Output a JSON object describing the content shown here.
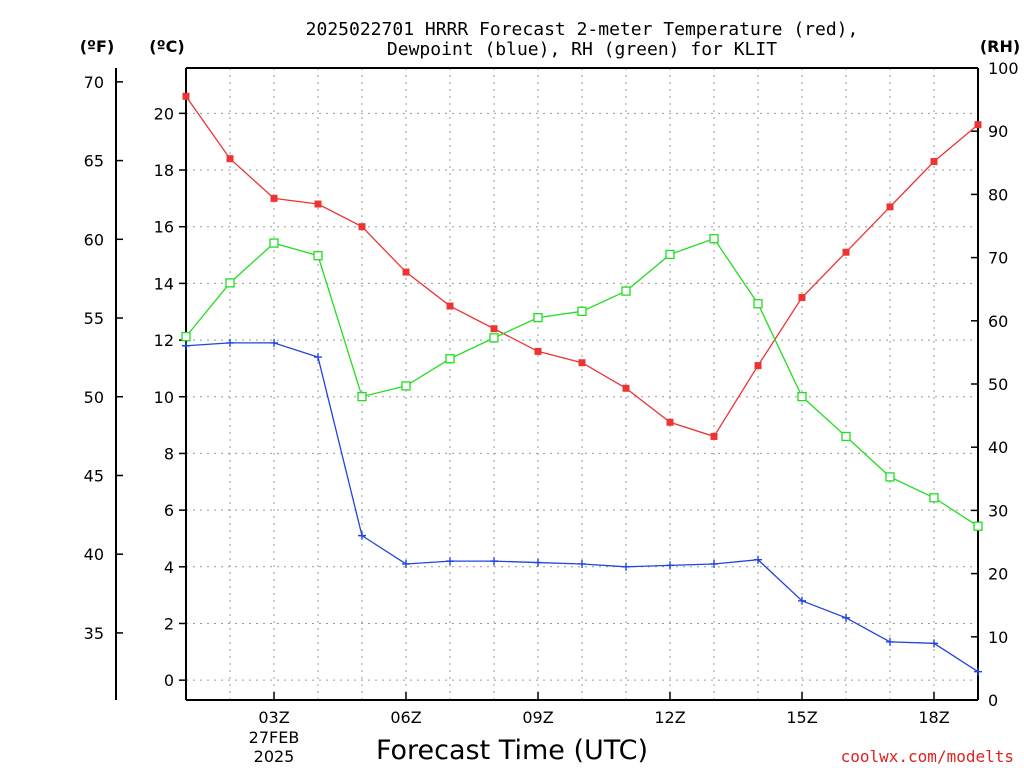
{
  "chart_data": {
    "type": "line",
    "title_line1": "2025022701 HRRR Forecast 2-meter Temperature (red),",
    "title_line2": "Dewpoint (blue), RH (green) for KLIT",
    "xlabel": "Forecast Time (UTC)",
    "credit": "coolwx.com/modelts",
    "units": {
      "fahrenheit": "(ºF)",
      "celsius": "(ºC)",
      "rh": "(RH)"
    },
    "date_label": {
      "day": "27FEB",
      "year": "2025"
    },
    "x": [
      1,
      2,
      3,
      4,
      5,
      6,
      7,
      8,
      9,
      10,
      11,
      12,
      13,
      14,
      15,
      16,
      17,
      18,
      19
    ],
    "x_ticks": [
      {
        "x": 3,
        "label": "03Z"
      },
      {
        "x": 6,
        "label": "06Z"
      },
      {
        "x": 9,
        "label": "09Z"
      },
      {
        "x": 12,
        "label": "12Z"
      },
      {
        "x": 15,
        "label": "15Z"
      },
      {
        "x": 18,
        "label": "18Z"
      }
    ],
    "xlim": [
      1,
      19
    ],
    "y_celsius_lim": [
      -0.7,
      21.6
    ],
    "y_celsius_ticks": [
      "0",
      "2",
      "4",
      "6",
      "8",
      "10",
      "12",
      "14",
      "16",
      "18",
      "20"
    ],
    "y_fahrenheit_ticks": [
      "35",
      "40",
      "45",
      "50",
      "55",
      "60",
      "65",
      "70"
    ],
    "y_rh_lim": [
      0,
      100
    ],
    "y_rh_ticks": [
      "0",
      "10",
      "20",
      "30",
      "40",
      "50",
      "60",
      "70",
      "80",
      "90",
      "100"
    ],
    "grid": true,
    "series": [
      {
        "name": "Temperature",
        "axis": "celsius",
        "color": "#ee3333",
        "marker": "filled-square",
        "values": [
          20.6,
          18.4,
          17.0,
          16.8,
          16.0,
          14.4,
          13.2,
          12.4,
          11.6,
          11.2,
          10.3,
          9.1,
          8.6,
          11.1,
          13.5,
          15.1,
          16.7,
          18.3,
          19.6
        ]
      },
      {
        "name": "Dewpoint",
        "axis": "celsius",
        "color": "#2244dd",
        "marker": "plus",
        "values": [
          11.8,
          11.9,
          11.9,
          11.4,
          5.1,
          4.1,
          4.2,
          4.2,
          4.15,
          4.1,
          4.0,
          4.05,
          4.1,
          4.25,
          2.8,
          2.2,
          1.35,
          1.3,
          0.3
        ]
      },
      {
        "name": "RH",
        "axis": "rh",
        "color": "#22dd22",
        "marker": "open-square",
        "values": [
          57.5,
          66.0,
          72.3,
          70.3,
          48.0,
          49.7,
          54.0,
          57.3,
          60.5,
          61.5,
          64.7,
          70.5,
          73.0,
          62.7,
          48.0,
          41.7,
          35.3,
          32.0,
          27.5
        ]
      }
    ]
  }
}
